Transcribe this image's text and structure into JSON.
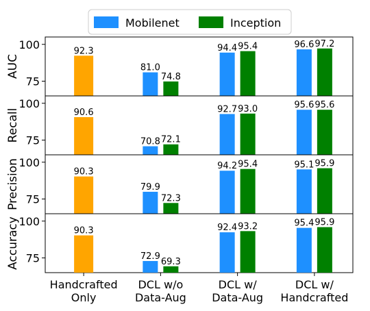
{
  "chart_data": {
    "type": "bar",
    "categories": [
      [
        "Handcrafted",
        "Only"
      ],
      [
        "DCL w/o",
        "Data-Aug"
      ],
      [
        "DCL w/",
        "Data-Aug"
      ],
      [
        "DCL w/",
        "Handcrafted"
      ]
    ],
    "legend": {
      "placement": "top-center",
      "entries": [
        {
          "name": "Mobilenet",
          "color": "#1e90ff"
        },
        {
          "name": "Inception",
          "color": "#008000"
        }
      ]
    },
    "handcrafted_color": "#ffa500",
    "ylim": [
      65,
      105
    ],
    "yticks": [
      75,
      100
    ],
    "grid": false,
    "panels": [
      {
        "ylabel": "AUC",
        "handcrafted": 92.3,
        "mobilenet": [
          81.0,
          94.4,
          96.6
        ],
        "inception": [
          74.8,
          95.4,
          97.2
        ],
        "labels": {
          "handcrafted": "92.3",
          "mobilenet": [
            "81.0",
            "94.4",
            "96.6"
          ],
          "inception": [
            "74.8",
            "95.4",
            "97.2"
          ]
        }
      },
      {
        "ylabel": "Recall",
        "handcrafted": 90.6,
        "mobilenet": [
          70.8,
          92.7,
          95.6
        ],
        "inception": [
          72.1,
          93.0,
          95.6
        ],
        "labels": {
          "handcrafted": "90.6",
          "mobilenet": [
            "70.8",
            "92.7",
            "95.6"
          ],
          "inception": [
            "72.1",
            "93.0",
            "95.6"
          ]
        }
      },
      {
        "ylabel": "Precision",
        "handcrafted": 90.3,
        "mobilenet": [
          79.9,
          94.2,
          95.1
        ],
        "inception": [
          72.3,
          95.4,
          95.9
        ],
        "labels": {
          "handcrafted": "90.3",
          "mobilenet": [
            "79.9",
            "94.2",
            "95.1"
          ],
          "inception": [
            "72.3",
            "95.4",
            "95.9"
          ]
        }
      },
      {
        "ylabel": "Accuracy",
        "handcrafted": 90.3,
        "mobilenet": [
          72.9,
          92.4,
          95.4
        ],
        "inception": [
          69.3,
          93.2,
          95.9
        ],
        "labels": {
          "handcrafted": "90.3",
          "mobilenet": [
            "72.9",
            "92.4",
            "95.4"
          ],
          "inception": [
            "69.3",
            "93.2",
            "95.9"
          ]
        }
      }
    ]
  }
}
